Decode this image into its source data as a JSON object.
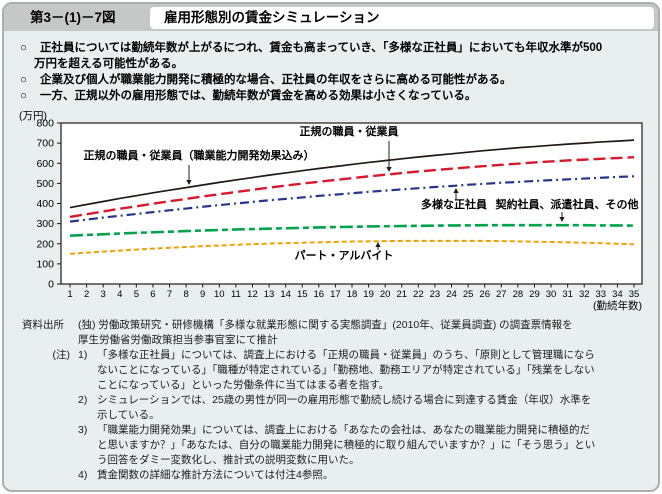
{
  "header": {
    "figure_number": "第3－(1)－7図",
    "title": "雇用形態別の賃金シミュレーション"
  },
  "bullets": [
    {
      "marker": "○",
      "text": "正社員については勤続年数が上がるにつれ、賃金も高まっていき、「多様な正社員」においても年収水準が500万円を超える可能性がある。"
    },
    {
      "marker": "○",
      "text": "企業及び個人が職業能力開発に積極的な場合、正社員の年収をさらに高める可能性がある。"
    },
    {
      "marker": "○",
      "text": "一方、正規以外の雇用形態では、勤続年数が賃金を高める効果は小さくなっている。"
    }
  ],
  "chart_data": {
    "type": "line",
    "title": "",
    "ylabel": "(万円)",
    "xlabel": "(勤続年数)",
    "x": [
      1,
      2,
      3,
      4,
      5,
      6,
      7,
      8,
      9,
      10,
      11,
      12,
      13,
      14,
      15,
      16,
      17,
      18,
      19,
      20,
      21,
      22,
      23,
      24,
      25,
      26,
      27,
      28,
      29,
      30,
      31,
      32,
      33,
      34,
      35
    ],
    "xlim": [
      1,
      35
    ],
    "ylim": [
      0,
      800
    ],
    "ytick_step": 100,
    "grid": false,
    "series": [
      {
        "key": "regular-with-training",
        "name": "正規の職員・従業員（職業能力開発効果込み）",
        "color": "#231815",
        "dash": "",
        "width": 1.7,
        "values": [
          380,
          395,
          410,
          425,
          439,
          453,
          466,
          479,
          492,
          505,
          517,
          529,
          541,
          552,
          563,
          574,
          584,
          594,
          604,
          613,
          622,
          631,
          639,
          647,
          655,
          663,
          670,
          677,
          683,
          689,
          695,
          700,
          706,
          710,
          715
        ]
      },
      {
        "key": "regular",
        "name": "正規の職員・従業員",
        "color": "#d7182d",
        "dash": "12 5",
        "width": 2.4,
        "values": [
          333,
          347,
          360,
          374,
          386,
          399,
          411,
          423,
          435,
          446,
          457,
          468,
          479,
          489,
          499,
          508,
          517,
          526,
          535,
          543,
          551,
          559,
          566,
          573,
          580,
          586,
          592,
          598,
          604,
          609,
          614,
          618,
          622,
          626,
          630
        ]
      },
      {
        "key": "diverse-regular",
        "name": "多様な正社員",
        "color": "#29358c",
        "dash": "9 4 2 4",
        "width": 2.2,
        "values": [
          310,
          320,
          330,
          339,
          348,
          357,
          366,
          375,
          384,
          392,
          400,
          408,
          416,
          423,
          430,
          438,
          444,
          451,
          458,
          464,
          470,
          476,
          482,
          487,
          493,
          498,
          503,
          507,
          512,
          516,
          520,
          524,
          528,
          532,
          535
        ]
      },
      {
        "key": "contract-dispatch-other",
        "name": "契約社員、派遣社員、その他",
        "color": "#00a24d",
        "dash": "13 4 6 4",
        "width": 2.6,
        "values": [
          240,
          244,
          247,
          251,
          254,
          257,
          260,
          263,
          266,
          268,
          271,
          273,
          275,
          277,
          279,
          281,
          283,
          284,
          286,
          287,
          288,
          289,
          290,
          291,
          291,
          292,
          292,
          292,
          292,
          292,
          292,
          292,
          291,
          291,
          290
        ]
      },
      {
        "key": "part-time",
        "name": "パート・アルバイト",
        "color": "#f0a000",
        "dash": "5 3",
        "width": 2,
        "values": [
          150,
          156,
          161,
          166,
          171,
          176,
          180,
          184,
          188,
          191,
          195,
          198,
          201,
          203,
          205,
          207,
          209,
          211,
          212,
          213,
          214,
          214,
          214,
          214,
          214,
          214,
          213,
          212,
          210,
          209,
          207,
          205,
          203,
          200,
          197
        ]
      }
    ],
    "annotations": [
      {
        "series": 0,
        "tx": 195,
        "ty": 52,
        "ax": 185,
        "ay_from": 58,
        "ay_to": 78,
        "dir": "down"
      },
      {
        "series": 1,
        "tx": 345,
        "ty": 28,
        "ax": 385,
        "ay_from": 34,
        "ay_to": 65,
        "dir": "down"
      },
      {
        "series": 2,
        "tx": 450,
        "ty": 101,
        "ax": 452,
        "ay_from": 93,
        "ay_to": 81,
        "dir": "up"
      },
      {
        "series": 3,
        "tx": 563,
        "ty": 101,
        "ax": 558,
        "ay_from": 105,
        "ay_to": 115,
        "dir": "down"
      },
      {
        "series": 4,
        "tx": 340,
        "ty": 152,
        "ax": 374,
        "ay_from": 143,
        "ay_to": 135,
        "dir": "up"
      }
    ]
  },
  "footer": {
    "source_label": "資料出所",
    "source_text": "(独) 労働政策研究・研修機構「多様な就業形態に関する実態調査」(2010年、従業員調査) の調査票情報を厚生労働省労働政策担当参事官室にて推計",
    "notes_label": "(注)",
    "notes": [
      {
        "num": "1)",
        "text": "「多様な正社員」については、調査上における「正規の職員・従業員」のうち、「原則として管理職にならないことになっている」「職種が特定されている」「勤務地、勤務エリアが特定されている」「残業をしないことになっている」といった労働条件に当てはまる者を指す。"
      },
      {
        "num": "2)",
        "text": "シミュレーションでは、25歳の男性が同一の雇用形態で勤続し続ける場合に到達する賃金（年収）水準を示している。"
      },
      {
        "num": "3)",
        "text": "「職業能力開発効果」については、調査上における「あなたの会社は、あなたの職業能力開発に積極的だと思いますか？」「あなたは、自分の職業能力開発に積極的に取り組んでいますか？」に「そう思う」という回答をダミー変数化し、推計式の説明変数に用いた。"
      },
      {
        "num": "4)",
        "text": "賃金関数の詳細な推計方法については付注4参照。"
      }
    ]
  }
}
